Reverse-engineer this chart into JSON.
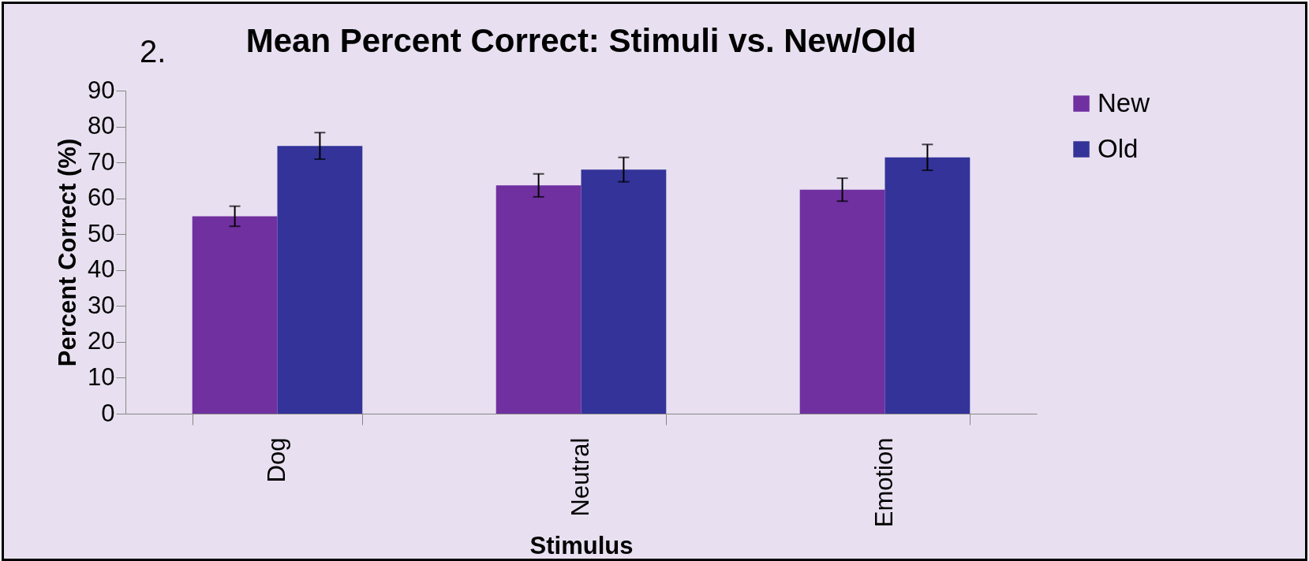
{
  "chart_data": {
    "type": "bar",
    "title": "Mean Percent Correct: Stimuli vs. New/Old",
    "xlabel": "Stimulus",
    "ylabel": "Percent Correct (%)",
    "annotations": [
      "2."
    ],
    "categories": [
      "Dog",
      "Neutral",
      "Emotion"
    ],
    "series": [
      {
        "name": "New",
        "color": "#7030a0",
        "values": [
          55.0,
          63.6,
          62.4
        ],
        "errors": [
          2.8,
          3.2,
          3.2
        ]
      },
      {
        "name": "Old",
        "color": "#333399",
        "values": [
          74.6,
          68.0,
          71.4
        ],
        "errors": [
          3.7,
          3.4,
          3.6
        ]
      }
    ],
    "ylim": [
      0,
      90
    ],
    "yticks": [
      0,
      10,
      20,
      30,
      40,
      50,
      60,
      70,
      80,
      90
    ],
    "grid": false,
    "legend": "right"
  }
}
